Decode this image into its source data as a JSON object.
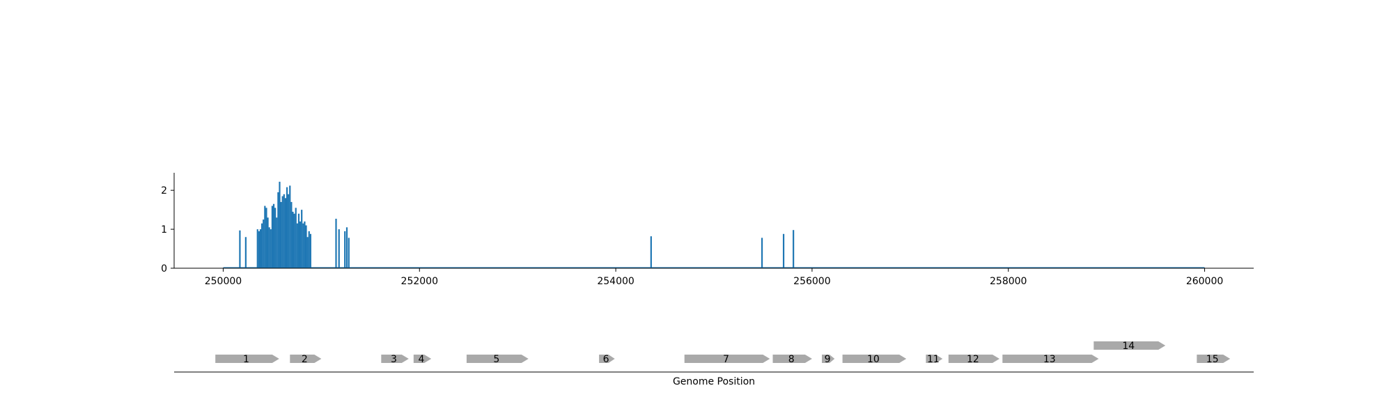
{
  "chart_data": [
    {
      "type": "bar",
      "title": "",
      "xlabel": "",
      "ylabel": "",
      "xlim": [
        249500,
        260500
      ],
      "ylim": [
        0,
        2.45
      ],
      "x_ticks": [
        250000,
        252000,
        254000,
        256000,
        258000,
        260000
      ],
      "x_tick_labels": [
        "250000",
        "252000",
        "254000",
        "256000",
        "258000",
        "260000"
      ],
      "y_ticks": [
        0,
        1,
        2
      ],
      "y_tick_labels": [
        "0",
        "1",
        "2"
      ],
      "grid": false,
      "color": "#1f77b4",
      "baseline": [
        250000,
        260000
      ],
      "bars": [
        {
          "x": 250170,
          "y": 0.97
        },
        {
          "x": 250230,
          "y": 0.8
        },
        {
          "x": 250350,
          "y": 1.0
        },
        {
          "x": 250365,
          "y": 0.95
        },
        {
          "x": 250380,
          "y": 1.0
        },
        {
          "x": 250395,
          "y": 1.15
        },
        {
          "x": 250410,
          "y": 1.25
        },
        {
          "x": 250425,
          "y": 1.6
        },
        {
          "x": 250440,
          "y": 1.55
        },
        {
          "x": 250455,
          "y": 1.3
        },
        {
          "x": 250470,
          "y": 1.05
        },
        {
          "x": 250485,
          "y": 1.0
        },
        {
          "x": 250500,
          "y": 1.6
        },
        {
          "x": 250515,
          "y": 1.65
        },
        {
          "x": 250530,
          "y": 1.55
        },
        {
          "x": 250545,
          "y": 1.3
        },
        {
          "x": 250560,
          "y": 1.95
        },
        {
          "x": 250575,
          "y": 2.22
        },
        {
          "x": 250590,
          "y": 1.7
        },
        {
          "x": 250605,
          "y": 1.85
        },
        {
          "x": 250620,
          "y": 1.9
        },
        {
          "x": 250635,
          "y": 1.8
        },
        {
          "x": 250650,
          "y": 2.08
        },
        {
          "x": 250665,
          "y": 1.9
        },
        {
          "x": 250680,
          "y": 2.12
        },
        {
          "x": 250695,
          "y": 1.7
        },
        {
          "x": 250710,
          "y": 1.45
        },
        {
          "x": 250725,
          "y": 1.4
        },
        {
          "x": 250740,
          "y": 1.55
        },
        {
          "x": 250755,
          "y": 1.15
        },
        {
          "x": 250770,
          "y": 1.4
        },
        {
          "x": 250785,
          "y": 1.2
        },
        {
          "x": 250800,
          "y": 1.5
        },
        {
          "x": 250815,
          "y": 1.15
        },
        {
          "x": 250830,
          "y": 1.2
        },
        {
          "x": 250845,
          "y": 1.1
        },
        {
          "x": 250860,
          "y": 0.8
        },
        {
          "x": 250875,
          "y": 0.95
        },
        {
          "x": 250890,
          "y": 0.88
        },
        {
          "x": 251150,
          "y": 1.27
        },
        {
          "x": 251180,
          "y": 1.0
        },
        {
          "x": 251240,
          "y": 0.95
        },
        {
          "x": 251260,
          "y": 1.05
        },
        {
          "x": 251280,
          "y": 0.78
        },
        {
          "x": 254360,
          "y": 0.82
        },
        {
          "x": 255490,
          "y": 0.78
        },
        {
          "x": 255710,
          "y": 0.88
        },
        {
          "x": 255810,
          "y": 0.98
        }
      ]
    },
    {
      "type": "gene-track",
      "xlabel": "Genome Position",
      "color": "#a9a9a9",
      "genes": [
        {
          "label": "1",
          "start": 249920,
          "end": 250570,
          "row": 0
        },
        {
          "label": "2",
          "start": 250680,
          "end": 251000,
          "row": 0
        },
        {
          "label": "3",
          "start": 251610,
          "end": 251890,
          "row": 0
        },
        {
          "label": "4",
          "start": 251940,
          "end": 252120,
          "row": 0
        },
        {
          "label": "5",
          "start": 252480,
          "end": 253110,
          "row": 0
        },
        {
          "label": "6",
          "start": 253830,
          "end": 253990,
          "row": 0
        },
        {
          "label": "7",
          "start": 254700,
          "end": 255570,
          "row": 0
        },
        {
          "label": "8",
          "start": 255600,
          "end": 256000,
          "row": 0
        },
        {
          "label": "9",
          "start": 256100,
          "end": 256230,
          "row": 0
        },
        {
          "label": "10",
          "start": 256310,
          "end": 256960,
          "row": 0
        },
        {
          "label": "11",
          "start": 257160,
          "end": 257330,
          "row": 0
        },
        {
          "label": "12",
          "start": 257390,
          "end": 257910,
          "row": 0
        },
        {
          "label": "13",
          "start": 257940,
          "end": 258920,
          "row": 0
        },
        {
          "label": "14",
          "start": 258870,
          "end": 259600,
          "row": 1
        },
        {
          "label": "15",
          "start": 259920,
          "end": 260260,
          "row": 0
        }
      ]
    }
  ]
}
